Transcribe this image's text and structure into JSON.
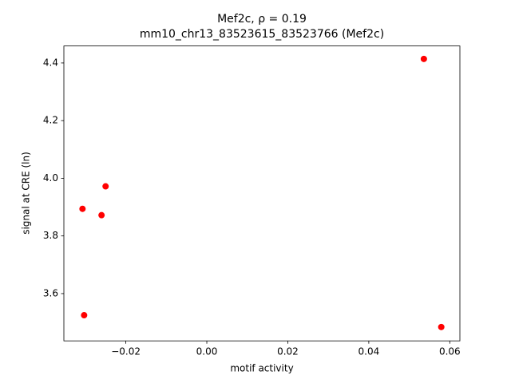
{
  "chart_data": {
    "type": "scatter",
    "title": "Mef2c, ρ = 0.19",
    "subtitle": "mm10_chr13_83523615_83523766 (Mef2c)",
    "x_label": "motif activity",
    "y_label": "signal at CRE (ln)",
    "color": "#ff0000",
    "x": [
      0.0536,
      0.0579,
      -0.025,
      -0.026,
      -0.0307,
      -0.0303
    ],
    "values": [
      4.414,
      3.484,
      3.972,
      3.872,
      3.894,
      3.525
    ],
    "xlim": [
      -0.0353,
      0.0625
    ],
    "ylim": [
      3.436,
      4.459
    ],
    "xticks": [
      {
        "value": -0.02,
        "label": "−0.02"
      },
      {
        "value": 0,
        "label": "0.00"
      },
      {
        "value": 0.02,
        "label": "0.02"
      },
      {
        "value": 0.04,
        "label": "0.04"
      },
      {
        "value": 0.06,
        "label": "0.06"
      }
    ],
    "yticks": [
      3.6,
      3.8,
      {
        "value": 4,
        "label": "4.0"
      },
      4.2,
      4.4
    ],
    "grid": false
  }
}
